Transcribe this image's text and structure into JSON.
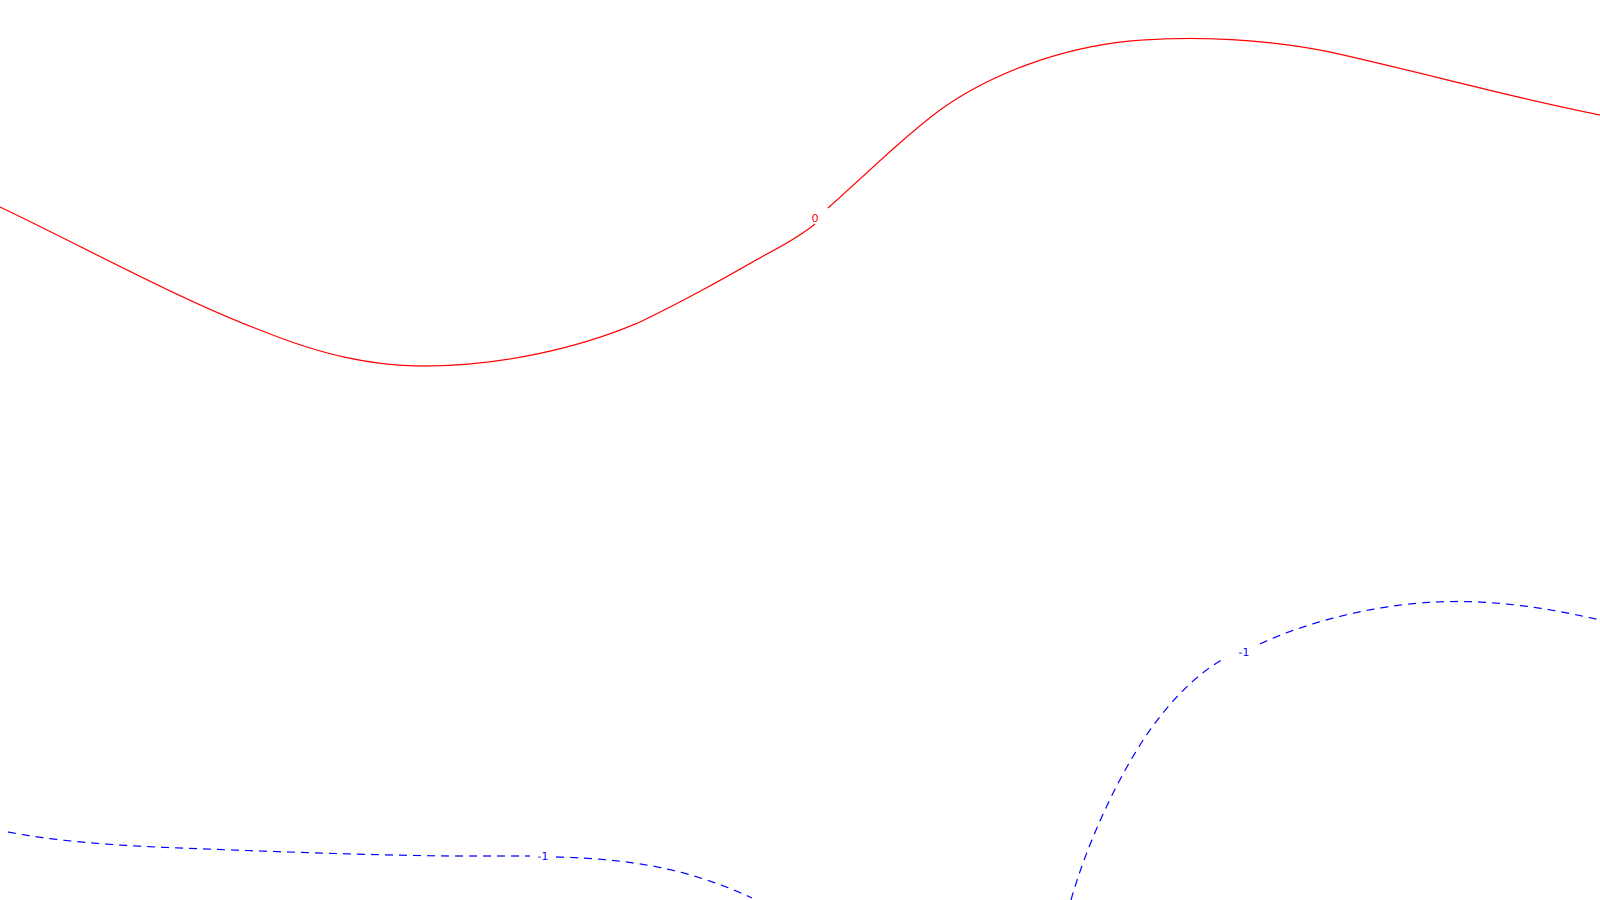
{
  "colors": {
    "background": "#ffffff",
    "level_0": "#ff0000",
    "level_neg1": "#0000ff"
  },
  "contours": [
    {
      "name": "contour-level-0",
      "level_label": "0",
      "style": "solid",
      "color": "#ff0000"
    },
    {
      "name": "contour-level-neg1-left",
      "level_label": "-1",
      "style": "dashed",
      "color": "#0000ff"
    },
    {
      "name": "contour-level-neg1-right",
      "level_label": "-1",
      "style": "dashed",
      "color": "#0000ff"
    }
  ]
}
